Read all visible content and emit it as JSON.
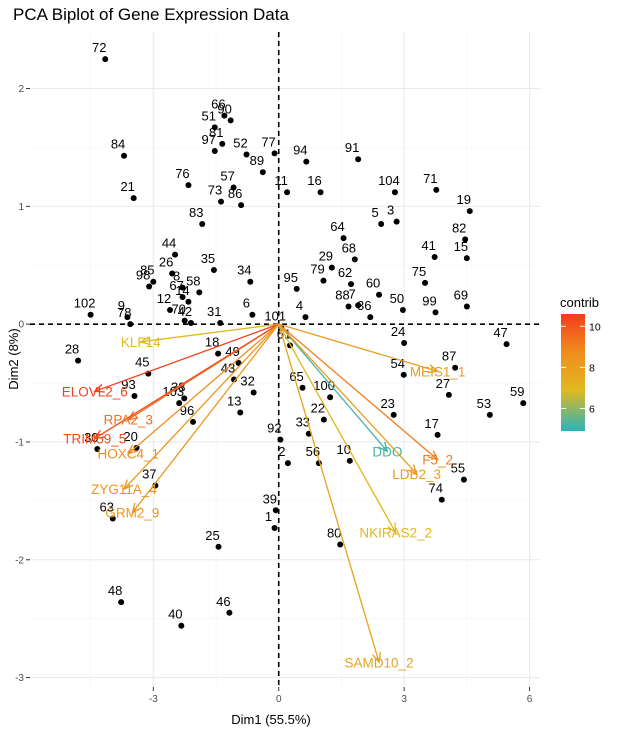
{
  "chart_data": {
    "type": "scatter",
    "title": "PCA Biplot of Gene Expression Data",
    "xlabel": "Dim1 (55.5%)",
    "ylabel": "Dim2 (8%)",
    "xlim": [
      -5.95,
      6.25
    ],
    "ylim": [
      -3.08,
      2.48
    ],
    "xticks": [
      -3,
      0,
      3,
      6
    ],
    "yticks": [
      -3,
      -2,
      -1,
      0,
      1,
      2
    ],
    "xtick_labels": [
      "-3",
      "0",
      "3",
      "6"
    ],
    "ytick_labels": [
      "-3",
      "-2",
      "-1",
      "0",
      "1",
      "2"
    ],
    "grid": true,
    "legend": {
      "title": "contrib",
      "position": "right",
      "range": [
        4.9,
        10.6
      ],
      "ticks": [
        6,
        8,
        10
      ],
      "tick_labels": [
        "6",
        "8",
        "10"
      ],
      "colors": [
        "#2cb3bb",
        "#e0b91e",
        "#f08c1e",
        "#f43b1c"
      ]
    },
    "points": [
      {
        "id": "1",
        "x": -0.1,
        "y": -1.73
      },
      {
        "id": "2",
        "x": 0.22,
        "y": -1.18
      },
      {
        "id": "3",
        "x": 2.82,
        "y": 0.87
      },
      {
        "id": "4",
        "x": 0.64,
        "y": 0.06
      },
      {
        "id": "5",
        "x": 2.45,
        "y": 0.85
      },
      {
        "id": "6",
        "x": -0.63,
        "y": 0.08
      },
      {
        "id": "7",
        "x": 1.9,
        "y": 0.16
      },
      {
        "id": "8",
        "x": -2.3,
        "y": 0.31
      },
      {
        "id": "9",
        "x": -3.62,
        "y": 0.06
      },
      {
        "id": "10",
        "x": 1.7,
        "y": -1.16
      },
      {
        "id": "11",
        "x": 0.2,
        "y": 1.12
      },
      {
        "id": "12",
        "x": -2.6,
        "y": 0.12
      },
      {
        "id": "13",
        "x": -0.92,
        "y": -0.75
      },
      {
        "id": "14",
        "x": -2.16,
        "y": 0.19
      },
      {
        "id": "15",
        "x": 4.5,
        "y": 0.56
      },
      {
        "id": "16",
        "x": 1.0,
        "y": 1.12
      },
      {
        "id": "17",
        "x": 3.8,
        "y": -0.94
      },
      {
        "id": "18",
        "x": -1.45,
        "y": -0.25
      },
      {
        "id": "19",
        "x": 4.57,
        "y": 0.96
      },
      {
        "id": "20",
        "x": -3.4,
        "y": -1.05
      },
      {
        "id": "21",
        "x": -3.47,
        "y": 1.07
      },
      {
        "id": "22",
        "x": 1.08,
        "y": -0.81
      },
      {
        "id": "23",
        "x": 2.75,
        "y": -0.77
      },
      {
        "id": "24",
        "x": 3.0,
        "y": -0.16
      },
      {
        "id": "25",
        "x": -1.44,
        "y": -1.89
      },
      {
        "id": "26",
        "x": -2.55,
        "y": 0.43
      },
      {
        "id": "27",
        "x": 4.07,
        "y": -0.6
      },
      {
        "id": "28",
        "x": -4.8,
        "y": -0.31
      },
      {
        "id": "29",
        "x": 1.27,
        "y": 0.48
      },
      {
        "id": "30",
        "x": -4.34,
        "y": -1.06
      },
      {
        "id": "31",
        "x": -1.4,
        "y": 0.01
      },
      {
        "id": "32",
        "x": -0.6,
        "y": -0.58
      },
      {
        "id": "33",
        "x": 0.72,
        "y": -0.93
      },
      {
        "id": "34",
        "x": -0.68,
        "y": 0.36
      },
      {
        "id": "35",
        "x": -1.55,
        "y": 0.46
      },
      {
        "id": "36",
        "x": 2.19,
        "y": 0.06
      },
      {
        "id": "37",
        "x": -2.95,
        "y": -1.37
      },
      {
        "id": "38",
        "x": -2.26,
        "y": -0.63
      },
      {
        "id": "39",
        "x": -0.07,
        "y": -1.58
      },
      {
        "id": "40",
        "x": -2.33,
        "y": -2.56
      },
      {
        "id": "41",
        "x": 3.73,
        "y": 0.57
      },
      {
        "id": "42",
        "x": -2.1,
        "y": 0.01
      },
      {
        "id": "43",
        "x": -1.07,
        "y": -0.47
      },
      {
        "id": "44",
        "x": -2.48,
        "y": 0.59
      },
      {
        "id": "45",
        "x": -3.12,
        "y": -0.42
      },
      {
        "id": "46",
        "x": -1.18,
        "y": -2.45
      },
      {
        "id": "47",
        "x": 5.45,
        "y": -0.17
      },
      {
        "id": "48",
        "x": -3.77,
        "y": -2.36
      },
      {
        "id": "49",
        "x": -0.96,
        "y": -0.33
      },
      {
        "id": "50",
        "x": 2.97,
        "y": 0.12
      },
      {
        "id": "51",
        "x": -1.53,
        "y": 1.67
      },
      {
        "id": "52",
        "x": -0.77,
        "y": 1.44
      },
      {
        "id": "53",
        "x": 5.05,
        "y": -0.77
      },
      {
        "id": "54",
        "x": 2.99,
        "y": -0.43
      },
      {
        "id": "55",
        "x": 4.43,
        "y": -1.32
      },
      {
        "id": "56",
        "x": 0.96,
        "y": -1.18
      },
      {
        "id": "57",
        "x": -1.08,
        "y": 1.16
      },
      {
        "id": "58",
        "x": -1.9,
        "y": 0.27
      },
      {
        "id": "59",
        "x": 5.85,
        "y": -0.67
      },
      {
        "id": "60",
        "x": 2.4,
        "y": 0.25
      },
      {
        "id": "61",
        "x": 0.27,
        "y": -0.18
      },
      {
        "id": "62",
        "x": 1.73,
        "y": 0.34
      },
      {
        "id": "63",
        "x": -3.97,
        "y": -1.65
      },
      {
        "id": "64",
        "x": 1.55,
        "y": 0.73
      },
      {
        "id": "65",
        "x": 0.57,
        "y": -0.54
      },
      {
        "id": "66",
        "x": -1.3,
        "y": 1.77
      },
      {
        "id": "67",
        "x": -2.3,
        "y": 0.23
      },
      {
        "id": "68",
        "x": 1.82,
        "y": 0.55
      },
      {
        "id": "69",
        "x": 4.5,
        "y": 0.15
      },
      {
        "id": "70",
        "x": -2.25,
        "y": 0.03
      },
      {
        "id": "71",
        "x": 3.77,
        "y": 1.14
      },
      {
        "id": "72",
        "x": -4.15,
        "y": 2.25
      },
      {
        "id": "73",
        "x": -1.38,
        "y": 1.04
      },
      {
        "id": "74",
        "x": 3.9,
        "y": -1.49
      },
      {
        "id": "75",
        "x": 3.5,
        "y": 0.35
      },
      {
        "id": "76",
        "x": -2.16,
        "y": 1.18
      },
      {
        "id": "77",
        "x": -0.1,
        "y": 1.45
      },
      {
        "id": "78",
        "x": -3.55,
        "y": 0.0
      },
      {
        "id": "79",
        "x": 1.07,
        "y": 0.37
      },
      {
        "id": "80",
        "x": 1.47,
        "y": -1.87
      },
      {
        "id": "81",
        "x": -1.35,
        "y": 1.53
      },
      {
        "id": "82",
        "x": 4.46,
        "y": 0.72
      },
      {
        "id": "83",
        "x": -1.83,
        "y": 0.85
      },
      {
        "id": "84",
        "x": -3.7,
        "y": 1.43
      },
      {
        "id": "85",
        "x": -3.0,
        "y": 0.36
      },
      {
        "id": "86",
        "x": -0.9,
        "y": 1.01
      },
      {
        "id": "87",
        "x": 4.22,
        "y": -0.37
      },
      {
        "id": "88",
        "x": 1.67,
        "y": 0.15
      },
      {
        "id": "89",
        "x": -0.38,
        "y": 1.29
      },
      {
        "id": "90",
        "x": -1.15,
        "y": 1.73
      },
      {
        "id": "91",
        "x": 1.9,
        "y": 1.4
      },
      {
        "id": "92",
        "x": 0.04,
        "y": -0.98
      },
      {
        "id": "93",
        "x": -3.45,
        "y": -0.61
      },
      {
        "id": "94",
        "x": 0.66,
        "y": 1.38
      },
      {
        "id": "95",
        "x": 0.43,
        "y": 0.3
      },
      {
        "id": "96",
        "x": -2.05,
        "y": -0.83
      },
      {
        "id": "97",
        "x": -1.53,
        "y": 1.47
      },
      {
        "id": "98",
        "x": -3.1,
        "y": 0.32
      },
      {
        "id": "99",
        "x": 3.75,
        "y": 0.1
      },
      {
        "id": "100",
        "x": 1.23,
        "y": -0.62
      },
      {
        "id": "101",
        "x": 0.06,
        "y": -0.03
      },
      {
        "id": "102",
        "x": -4.5,
        "y": 0.08
      },
      {
        "id": "103",
        "x": -2.38,
        "y": -0.67
      },
      {
        "id": "104",
        "x": 2.78,
        "y": 1.12
      }
    ],
    "variables": [
      {
        "name": "KLF14",
        "x": -3.3,
        "y": -0.15,
        "contrib": 6.9
      },
      {
        "name": "ELOVL2_6",
        "x": -4.4,
        "y": -0.57,
        "contrib": 10.5
      },
      {
        "name": "RPA2_3",
        "x": -3.6,
        "y": -0.81,
        "contrib": 9.4
      },
      {
        "name": "TRIM59_5",
        "x": -4.4,
        "y": -0.97,
        "contrib": 10.2
      },
      {
        "name": "HOXC4_1",
        "x": -3.6,
        "y": -1.1,
        "contrib": 8.7
      },
      {
        "name": "ZYG11A_4",
        "x": -3.7,
        "y": -1.4,
        "contrib": 8.4
      },
      {
        "name": "GRM2_9",
        "x": -3.5,
        "y": -1.6,
        "contrib": 8.3
      },
      {
        "name": "MEIS1_1",
        "x": 3.8,
        "y": -0.4,
        "contrib": 8.1
      },
      {
        "name": "DDO",
        "x": 2.6,
        "y": -1.08,
        "contrib": 5.2
      },
      {
        "name": "F5_2",
        "x": 3.8,
        "y": -1.15,
        "contrib": 9.1
      },
      {
        "name": "LDB2_3",
        "x": 3.3,
        "y": -1.27,
        "contrib": 8.1
      },
      {
        "name": "NKIRAS2_2",
        "x": 2.8,
        "y": -1.77,
        "contrib": 7.0
      },
      {
        "name": "SAMD10_2",
        "x": 2.4,
        "y": -2.87,
        "contrib": 7.9
      }
    ]
  }
}
